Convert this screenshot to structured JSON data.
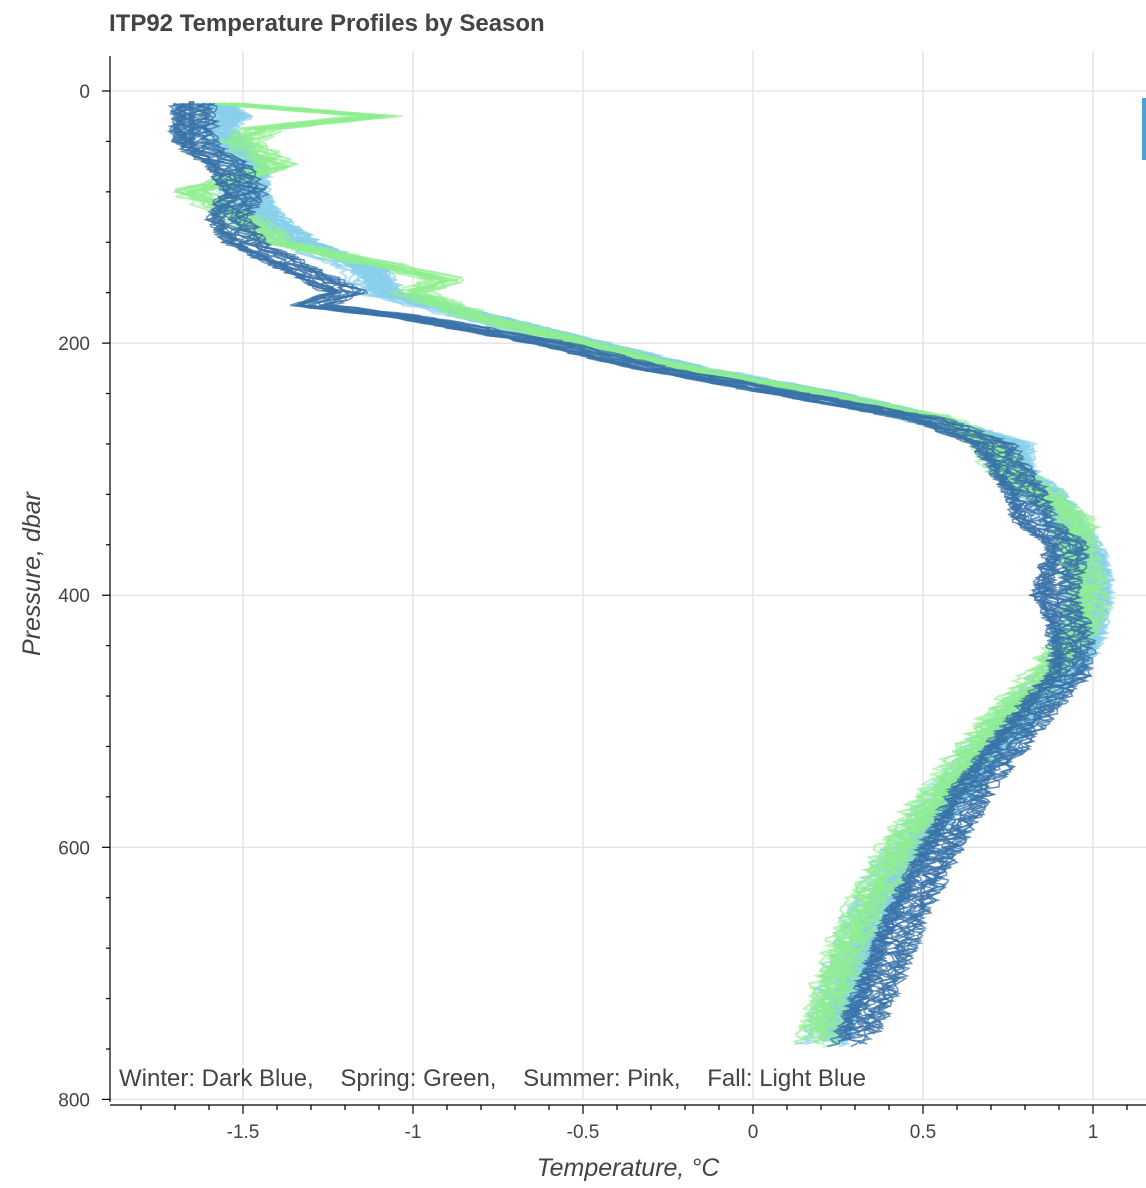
{
  "chart_data": {
    "type": "line",
    "title": "ITP92 Temperature Profiles by Season",
    "xlabel": "Temperature, °C",
    "ylabel": "Pressure, dbar",
    "xlim": [
      -1.9,
      1.15
    ],
    "ylim": [
      800,
      -35
    ],
    "y_inverted": true,
    "grid": true,
    "x_ticks": [
      -1.5,
      -1,
      -0.5,
      0,
      0.5,
      1
    ],
    "x_tick_labels": [
      "-1.5",
      "-1",
      "-0.5",
      "0",
      "0.5",
      "1"
    ],
    "y_ticks": [
      0,
      200,
      400,
      600,
      800
    ],
    "y_tick_labels": [
      "0",
      "200",
      "400",
      "600",
      "800"
    ],
    "legend_text": "Winter: Dark Blue,    Spring: Green,    Summer: Pink,    Fall: Light Blue",
    "legend_placement": "bottom-left inside plot",
    "series_colors": {
      "Winter": "#3a73a8",
      "Spring": "#90ee90",
      "Summer": "#ffb6c1",
      "Fall": "#87ceeb"
    },
    "series": [
      {
        "name": "Fall",
        "color": "#87ceeb",
        "profiles_shown": 30,
        "pressure": [
          10,
          20,
          30,
          40,
          60,
          80,
          100,
          120,
          140,
          160,
          180,
          200,
          220,
          240,
          260,
          280,
          300,
          320,
          340,
          360,
          380,
          400,
          420,
          440,
          460,
          500,
          550,
          600,
          650,
          700,
          760
        ],
        "temperature": [
          -1.6,
          -1.55,
          -1.6,
          -1.55,
          -1.5,
          -1.5,
          -1.45,
          -1.35,
          -1.15,
          -1.1,
          -0.8,
          -0.5,
          -0.2,
          0.2,
          0.5,
          0.75,
          0.75,
          0.85,
          0.9,
          0.95,
          0.98,
          0.98,
          0.97,
          0.95,
          0.9,
          0.75,
          0.6,
          0.45,
          0.35,
          0.27,
          0.2
        ]
      },
      {
        "name": "Spring",
        "color": "#90ee90",
        "profiles_shown": 15,
        "pressure": [
          10,
          20,
          30,
          40,
          60,
          80,
          100,
          120,
          140,
          150,
          160,
          180,
          200,
          220,
          240,
          260,
          280,
          300,
          320,
          340,
          360,
          380,
          400,
          420,
          440,
          460,
          500,
          550,
          600,
          650,
          700,
          760
        ],
        "temperature": [
          -1.55,
          -1.1,
          -1.45,
          -1.5,
          -1.4,
          -1.65,
          -1.5,
          -1.4,
          -1.05,
          -0.9,
          -1.0,
          -0.8,
          -0.5,
          -0.2,
          0.2,
          0.55,
          0.7,
          0.75,
          0.85,
          0.95,
          0.95,
          0.97,
          0.98,
          0.97,
          0.93,
          0.87,
          0.72,
          0.57,
          0.43,
          0.33,
          0.25,
          0.18
        ]
      },
      {
        "name": "Winter",
        "color": "#3a73a8",
        "profiles_shown": 20,
        "pressure": [
          10,
          20,
          30,
          40,
          60,
          80,
          100,
          120,
          140,
          160,
          170,
          180,
          200,
          220,
          240,
          260,
          280,
          300,
          320,
          340,
          360,
          380,
          400,
          420,
          440,
          460,
          500,
          550,
          600,
          650,
          700,
          760
        ],
        "temperature": [
          -1.65,
          -1.65,
          -1.65,
          -1.65,
          -1.55,
          -1.5,
          -1.55,
          -1.5,
          -1.35,
          -1.2,
          -1.3,
          -1.0,
          -0.6,
          -0.3,
          0.1,
          0.5,
          0.7,
          0.75,
          0.8,
          0.82,
          0.92,
          0.9,
          0.88,
          0.92,
          0.93,
          0.93,
          0.8,
          0.65,
          0.55,
          0.45,
          0.38,
          0.28
        ]
      },
      {
        "name": "Summer",
        "color": "#ffb6c1",
        "profiles_shown": 0,
        "pressure": [],
        "temperature": []
      }
    ]
  }
}
